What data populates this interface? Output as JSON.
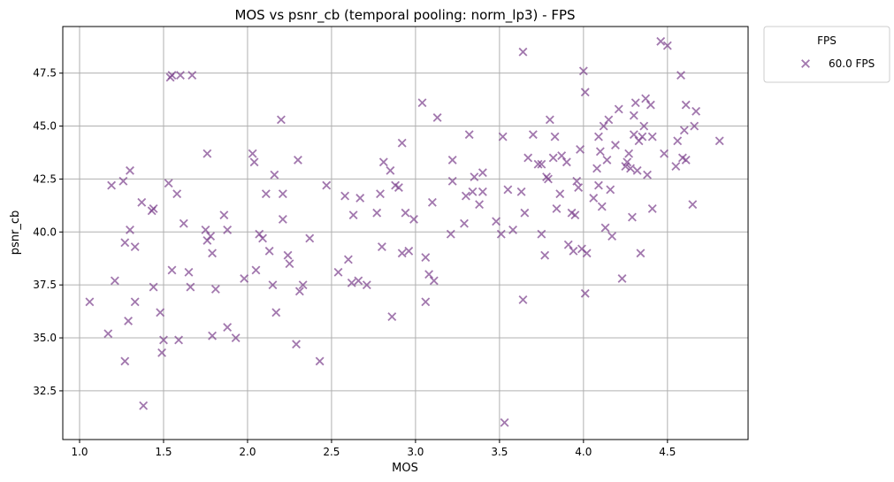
{
  "chart_data": {
    "type": "scatter",
    "title": "MOS vs psnr_cb (temporal pooling: norm_lp3) - FPS",
    "xlabel": "MOS",
    "ylabel": "psnr_cb",
    "xlim": [
      0.9,
      4.98
    ],
    "ylim": [
      30.2,
      49.7
    ],
    "x_ticks": [
      "1.0",
      "1.5",
      "2.0",
      "2.5",
      "3.0",
      "3.5",
      "4.0",
      "4.5"
    ],
    "y_ticks": [
      "32.5",
      "35.0",
      "37.5",
      "40.0",
      "42.5",
      "45.0",
      "47.5"
    ],
    "grid": true,
    "legend": {
      "title": "FPS",
      "position": "outside-top-right"
    },
    "marker": "x",
    "series": [
      {
        "name": "60.0 FPS",
        "color": "#7b3f8c",
        "points": [
          [
            1.06,
            36.7
          ],
          [
            1.17,
            35.2
          ],
          [
            1.19,
            42.2
          ],
          [
            1.21,
            37.7
          ],
          [
            1.26,
            42.4
          ],
          [
            1.27,
            33.9
          ],
          [
            1.27,
            39.5
          ],
          [
            1.29,
            35.8
          ],
          [
            1.3,
            40.1
          ],
          [
            1.3,
            42.9
          ],
          [
            1.33,
            39.3
          ],
          [
            1.33,
            36.7
          ],
          [
            1.37,
            41.4
          ],
          [
            1.38,
            31.8
          ],
          [
            1.43,
            41.0
          ],
          [
            1.44,
            41.1
          ],
          [
            1.44,
            37.4
          ],
          [
            1.48,
            36.2
          ],
          [
            1.49,
            34.3
          ],
          [
            1.5,
            34.9
          ],
          [
            1.53,
            42.3
          ],
          [
            1.54,
            47.3
          ],
          [
            1.55,
            47.4
          ],
          [
            1.55,
            38.2
          ],
          [
            1.58,
            41.8
          ],
          [
            1.59,
            34.9
          ],
          [
            1.6,
            47.4
          ],
          [
            1.62,
            40.4
          ],
          [
            1.65,
            38.1
          ],
          [
            1.66,
            37.4
          ],
          [
            1.67,
            47.4
          ],
          [
            1.75,
            40.1
          ],
          [
            1.76,
            43.7
          ],
          [
            1.76,
            39.6
          ],
          [
            1.78,
            39.8
          ],
          [
            1.79,
            35.1
          ],
          [
            1.79,
            39.0
          ],
          [
            1.81,
            37.3
          ],
          [
            1.86,
            40.8
          ],
          [
            1.88,
            35.5
          ],
          [
            1.88,
            40.1
          ],
          [
            1.93,
            35.0
          ],
          [
            1.98,
            37.8
          ],
          [
            2.03,
            43.7
          ],
          [
            2.04,
            43.3
          ],
          [
            2.05,
            38.2
          ],
          [
            2.07,
            39.9
          ],
          [
            2.09,
            39.7
          ],
          [
            2.11,
            41.8
          ],
          [
            2.13,
            39.1
          ],
          [
            2.15,
            37.5
          ],
          [
            2.16,
            42.7
          ],
          [
            2.17,
            36.2
          ],
          [
            2.2,
            45.3
          ],
          [
            2.21,
            40.6
          ],
          [
            2.21,
            41.8
          ],
          [
            2.24,
            38.9
          ],
          [
            2.25,
            38.5
          ],
          [
            2.29,
            34.7
          ],
          [
            2.3,
            43.4
          ],
          [
            2.31,
            37.2
          ],
          [
            2.33,
            37.5
          ],
          [
            2.37,
            39.7
          ],
          [
            2.43,
            33.9
          ],
          [
            2.47,
            42.2
          ],
          [
            2.54,
            38.1
          ],
          [
            2.58,
            41.7
          ],
          [
            2.6,
            38.7
          ],
          [
            2.62,
            37.6
          ],
          [
            2.63,
            40.8
          ],
          [
            2.66,
            37.7
          ],
          [
            2.67,
            41.6
          ],
          [
            2.71,
            37.5
          ],
          [
            2.77,
            40.9
          ],
          [
            2.79,
            41.8
          ],
          [
            2.8,
            39.3
          ],
          [
            2.81,
            43.3
          ],
          [
            2.85,
            42.9
          ],
          [
            2.86,
            36.0
          ],
          [
            2.88,
            42.2
          ],
          [
            2.9,
            42.1
          ],
          [
            2.92,
            44.2
          ],
          [
            2.92,
            39.0
          ],
          [
            2.94,
            40.9
          ],
          [
            2.96,
            39.1
          ],
          [
            2.99,
            40.6
          ],
          [
            3.04,
            46.1
          ],
          [
            3.06,
            38.8
          ],
          [
            3.06,
            36.7
          ],
          [
            3.08,
            38.0
          ],
          [
            3.1,
            41.4
          ],
          [
            3.11,
            37.7
          ],
          [
            3.13,
            45.4
          ],
          [
            3.21,
            39.9
          ],
          [
            3.22,
            43.4
          ],
          [
            3.22,
            42.4
          ],
          [
            3.29,
            40.4
          ],
          [
            3.3,
            41.7
          ],
          [
            3.32,
            44.6
          ],
          [
            3.34,
            41.9
          ],
          [
            3.35,
            42.6
          ],
          [
            3.38,
            41.3
          ],
          [
            3.4,
            41.9
          ],
          [
            3.4,
            42.8
          ],
          [
            3.48,
            40.5
          ],
          [
            3.51,
            39.9
          ],
          [
            3.52,
            44.5
          ],
          [
            3.53,
            31.0
          ],
          [
            3.55,
            42.0
          ],
          [
            3.58,
            40.1
          ],
          [
            3.63,
            41.9
          ],
          [
            3.64,
            48.5
          ],
          [
            3.64,
            36.8
          ],
          [
            3.65,
            40.9
          ],
          [
            3.67,
            43.5
          ],
          [
            3.7,
            44.6
          ],
          [
            3.73,
            43.2
          ],
          [
            3.75,
            43.2
          ],
          [
            3.75,
            39.9
          ],
          [
            3.77,
            38.9
          ],
          [
            3.78,
            42.6
          ],
          [
            3.79,
            42.5
          ],
          [
            3.8,
            45.3
          ],
          [
            3.82,
            43.5
          ],
          [
            3.83,
            44.5
          ],
          [
            3.84,
            41.1
          ],
          [
            3.86,
            41.8
          ],
          [
            3.87,
            43.6
          ],
          [
            3.9,
            43.3
          ],
          [
            3.91,
            39.4
          ],
          [
            3.93,
            40.9
          ],
          [
            3.94,
            39.1
          ],
          [
            3.95,
            40.8
          ],
          [
            3.96,
            42.4
          ],
          [
            3.97,
            42.1
          ],
          [
            3.98,
            43.9
          ],
          [
            3.99,
            39.2
          ],
          [
            4.0,
            47.6
          ],
          [
            4.01,
            46.6
          ],
          [
            4.01,
            37.1
          ],
          [
            4.02,
            39.0
          ],
          [
            4.06,
            41.6
          ],
          [
            4.08,
            43.0
          ],
          [
            4.09,
            44.5
          ],
          [
            4.09,
            42.2
          ],
          [
            4.1,
            43.8
          ],
          [
            4.11,
            41.2
          ],
          [
            4.12,
            45.0
          ],
          [
            4.13,
            40.2
          ],
          [
            4.14,
            43.4
          ],
          [
            4.15,
            45.3
          ],
          [
            4.16,
            42.0
          ],
          [
            4.17,
            39.8
          ],
          [
            4.19,
            44.1
          ],
          [
            4.21,
            45.8
          ],
          [
            4.23,
            37.8
          ],
          [
            4.25,
            43.1
          ],
          [
            4.26,
            43.3
          ],
          [
            4.27,
            43.7
          ],
          [
            4.28,
            43.0
          ],
          [
            4.29,
            40.7
          ],
          [
            4.3,
            45.5
          ],
          [
            4.3,
            44.6
          ],
          [
            4.31,
            46.1
          ],
          [
            4.32,
            42.9
          ],
          [
            4.33,
            44.3
          ],
          [
            4.34,
            39.0
          ],
          [
            4.35,
            44.5
          ],
          [
            4.36,
            45.0
          ],
          [
            4.37,
            46.3
          ],
          [
            4.38,
            42.7
          ],
          [
            4.4,
            46.0
          ],
          [
            4.41,
            41.1
          ],
          [
            4.41,
            44.5
          ],
          [
            4.46,
            49.0
          ],
          [
            4.48,
            43.7
          ],
          [
            4.5,
            48.8
          ],
          [
            4.55,
            43.1
          ],
          [
            4.56,
            44.3
          ],
          [
            4.58,
            47.4
          ],
          [
            4.59,
            43.5
          ],
          [
            4.6,
            44.8
          ],
          [
            4.61,
            46.0
          ],
          [
            4.61,
            43.4
          ],
          [
            4.65,
            41.3
          ],
          [
            4.66,
            45.0
          ],
          [
            4.67,
            45.7
          ],
          [
            4.81,
            44.3
          ]
        ]
      }
    ]
  }
}
